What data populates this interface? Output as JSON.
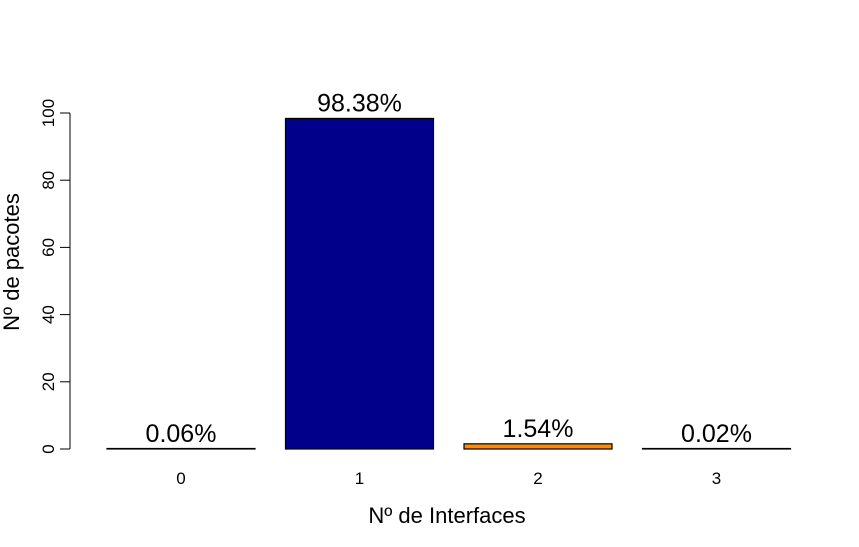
{
  "chart_data": {
    "type": "bar",
    "title": "",
    "xlabel": "Nº de Interfaces",
    "ylabel": "Nº de pacotes",
    "categories": [
      "0",
      "1",
      "2",
      "3"
    ],
    "values": [
      0.06,
      98.38,
      1.54,
      0.02
    ],
    "data_labels": [
      "0.06%",
      "98.38%",
      "1.54%",
      "0.02%"
    ],
    "bar_colors": [
      "#FFFFFF",
      "#00008B",
      "#FF8C00",
      "#FFFFFF"
    ],
    "ylim": [
      0,
      100
    ],
    "yticks": [
      "0",
      "20",
      "40",
      "60",
      "80",
      "100"
    ],
    "grid": false,
    "legend": "none"
  }
}
